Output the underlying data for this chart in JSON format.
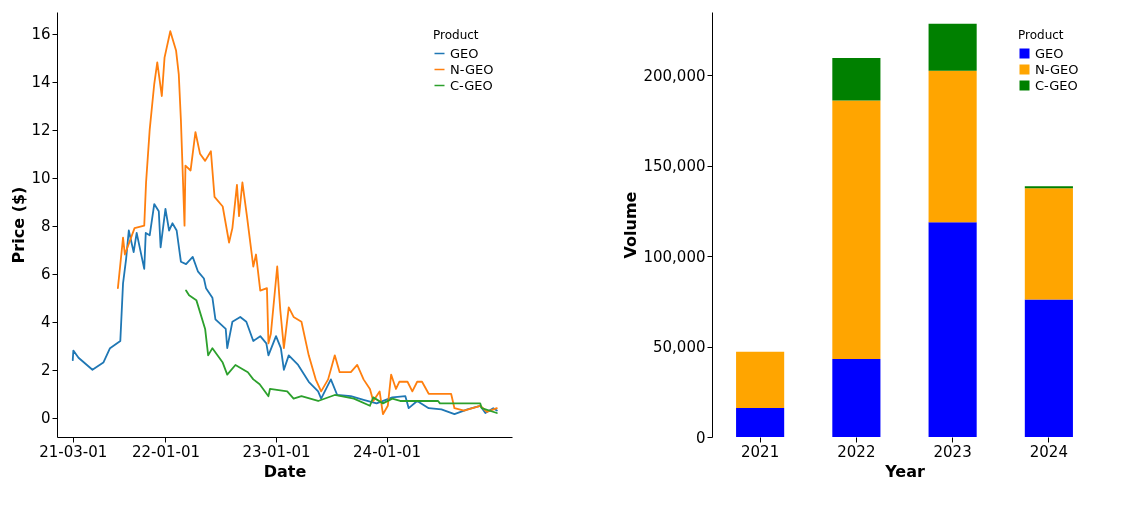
{
  "chart_data": [
    {
      "type": "line",
      "xlabel": "Date",
      "ylabel": "Price ($)",
      "legend_title": "Product",
      "legend": "top right",
      "grid": false,
      "xlim": [
        "2021-01-08",
        "2025-02-18"
      ],
      "xticks": [
        {
          "value": "2021-03-01",
          "label": "21-03-01"
        },
        {
          "value": "2022-01-01",
          "label": "22-01-01"
        },
        {
          "value": "2023-01-01",
          "label": "23-01-01"
        },
        {
          "value": "2024-01-01",
          "label": "24-01-01"
        }
      ],
      "ylim": [
        -0.8,
        16.9
      ],
      "yticks": [
        0,
        2,
        4,
        6,
        8,
        10,
        12,
        14,
        16
      ],
      "series": [
        {
          "name": "GEO",
          "color": "#1f77b4",
          "x": [
            "2021-03-01",
            "2021-03-03",
            "2021-03-20",
            "2021-05-05",
            "2021-06-10",
            "2021-07-02",
            "2021-08-05",
            "2021-08-14",
            "2021-08-24",
            "2021-09-02",
            "2021-09-18",
            "2021-09-28",
            "2021-10-23",
            "2021-10-28",
            "2021-11-10",
            "2021-11-25",
            "2021-12-10",
            "2021-12-16",
            "2022-01-01",
            "2022-01-13",
            "2022-01-24",
            "2022-02-07",
            "2022-02-21",
            "2022-03-10",
            "2022-04-01",
            "2022-04-18",
            "2022-05-08",
            "2022-05-15",
            "2022-06-05",
            "2022-06-15",
            "2022-07-19",
            "2022-07-24",
            "2022-08-10",
            "2022-09-05",
            "2022-09-25",
            "2022-10-18",
            "2022-11-10",
            "2022-11-30",
            "2022-12-07",
            "2023-01-01",
            "2023-01-17",
            "2023-01-27",
            "2023-02-12",
            "2023-03-15",
            "2023-04-19",
            "2023-05-20",
            "2023-05-30",
            "2023-07-01",
            "2023-07-22",
            "2023-09-05",
            "2023-10-17",
            "2023-11-29",
            "2024-01-20",
            "2024-03-03",
            "2024-03-14",
            "2024-04-11",
            "2024-05-19",
            "2024-06-30",
            "2024-08-12",
            "2024-09-24",
            "2024-11-05",
            "2024-11-22",
            "2024-12-18",
            "2024-12-30"
          ],
          "values": [
            2.4,
            2.8,
            2.5,
            2.0,
            2.3,
            2.9,
            3.2,
            5.6,
            6.6,
            7.8,
            6.9,
            7.7,
            6.2,
            7.7,
            7.6,
            8.9,
            8.6,
            7.1,
            8.7,
            7.8,
            8.1,
            7.8,
            6.5,
            6.4,
            6.7,
            6.1,
            5.8,
            5.4,
            5.0,
            4.1,
            3.7,
            2.9,
            4.0,
            4.2,
            4.0,
            3.2,
            3.4,
            3.1,
            2.6,
            3.4,
            2.9,
            2.0,
            2.6,
            2.2,
            1.5,
            1.1,
            0.8,
            1.6,
            0.95,
            0.9,
            0.75,
            0.6,
            0.85,
            0.9,
            0.4,
            0.7,
            0.4,
            0.35,
            0.15,
            0.35,
            0.5,
            0.2,
            0.4,
            0.3
          ]
        },
        {
          "name": "N-GEO",
          "color": "#ff7f0e",
          "x": [
            "2021-07-28",
            "2021-08-14",
            "2021-08-20",
            "2021-09-21",
            "2021-10-23",
            "2021-10-29",
            "2021-11-10",
            "2021-11-25",
            "2021-12-05",
            "2021-12-20",
            "2021-12-29",
            "2022-01-17",
            "2022-02-05",
            "2022-02-14",
            "2022-02-21",
            "2022-03-05",
            "2022-03-08",
            "2022-03-25",
            "2022-04-10",
            "2022-04-25",
            "2022-05-12",
            "2022-05-31",
            "2022-06-12",
            "2022-07-09",
            "2022-07-30",
            "2022-08-10",
            "2022-08-25",
            "2022-09-01",
            "2022-09-12",
            "2022-09-27",
            "2022-10-18",
            "2022-10-27",
            "2022-11-10",
            "2022-12-02",
            "2022-12-07",
            "2022-12-15",
            "2023-01-05",
            "2023-01-15",
            "2023-01-27",
            "2023-02-12",
            "2023-02-28",
            "2023-03-26",
            "2023-04-19",
            "2023-05-12",
            "2023-05-30",
            "2023-06-22",
            "2023-07-14",
            "2023-07-30",
            "2023-09-05",
            "2023-09-26",
            "2023-10-17",
            "2023-11-07",
            "2023-11-18",
            "2023-12-09",
            "2023-12-20",
            "2024-01-05",
            "2024-01-16",
            "2024-02-01",
            "2024-02-12",
            "2024-03-10",
            "2024-03-26",
            "2024-04-11",
            "2024-04-27",
            "2024-05-19",
            "2024-06-30",
            "2024-08-01",
            "2024-08-12",
            "2024-09-13",
            "2024-11-05",
            "2024-11-27",
            "2024-12-30"
          ],
          "values": [
            5.4,
            7.5,
            6.8,
            7.9,
            8.0,
            9.8,
            12.0,
            13.9,
            14.8,
            13.4,
            15.0,
            16.1,
            15.3,
            14.3,
            12.4,
            8.0,
            10.5,
            10.3,
            11.9,
            11.0,
            10.7,
            11.1,
            9.2,
            8.8,
            7.3,
            7.9,
            9.7,
            8.4,
            9.8,
            8.4,
            6.3,
            6.8,
            5.3,
            5.4,
            3.1,
            3.5,
            6.3,
            4.5,
            2.9,
            4.6,
            4.2,
            4.0,
            2.6,
            1.6,
            1.1,
            1.6,
            2.6,
            1.9,
            1.9,
            2.2,
            1.6,
            1.2,
            0.7,
            1.1,
            0.15,
            0.5,
            1.8,
            1.2,
            1.5,
            1.5,
            1.1,
            1.5,
            1.5,
            1.0,
            1.0,
            1.0,
            0.4,
            0.3,
            0.5,
            0.25,
            0.4
          ]
        },
        {
          "name": "C-GEO",
          "color": "#2ca02c",
          "x": [
            "2022-03-10",
            "2022-03-20",
            "2022-04-13",
            "2022-05-12",
            "2022-05-22",
            "2022-06-05",
            "2022-07-09",
            "2022-07-24",
            "2022-08-20",
            "2022-09-30",
            "2022-10-18",
            "2022-11-08",
            "2022-12-07",
            "2022-12-12",
            "2023-02-07",
            "2023-02-28",
            "2023-03-26",
            "2023-05-20",
            "2023-07-14",
            "2023-09-15",
            "2023-11-07",
            "2023-11-18",
            "2023-12-20",
            "2024-01-20",
            "2024-02-15",
            "2024-06-19",
            "2024-06-25",
            "2024-11-05",
            "2024-11-10",
            "2024-12-30"
          ],
          "values": [
            5.3,
            5.1,
            4.9,
            3.7,
            2.6,
            2.9,
            2.3,
            1.8,
            2.2,
            1.9,
            1.6,
            1.4,
            0.9,
            1.2,
            1.1,
            0.8,
            0.9,
            0.7,
            0.95,
            0.8,
            0.5,
            0.85,
            0.6,
            0.8,
            0.7,
            0.7,
            0.6,
            0.6,
            0.4,
            0.2
          ]
        }
      ]
    },
    {
      "type": "bar",
      "stacked": true,
      "xlabel": "Year",
      "ylabel": "Volume",
      "legend_title": "Product",
      "legend": "top right",
      "grid": false,
      "categories": [
        "2021",
        "2022",
        "2023",
        "2024"
      ],
      "ylim": [
        0,
        235000
      ],
      "yticks": [
        0,
        {
          "value": 50000,
          "label": "50,000"
        },
        {
          "value": 100000,
          "label": "100,000"
        },
        {
          "value": 150000,
          "label": "150,000"
        },
        {
          "value": 200000,
          "label": "200,000"
        }
      ],
      "series": [
        {
          "name": "GEO",
          "color": "#0000ff",
          "values": [
            16000,
            43100,
            118700,
            76000
          ]
        },
        {
          "name": "N-GEO",
          "color": "#ffa500",
          "values": [
            31100,
            142900,
            83800,
            61600
          ]
        },
        {
          "name": "C-GEO",
          "color": "#008000",
          "values": [
            0,
            23500,
            26000,
            1000
          ]
        }
      ]
    }
  ]
}
